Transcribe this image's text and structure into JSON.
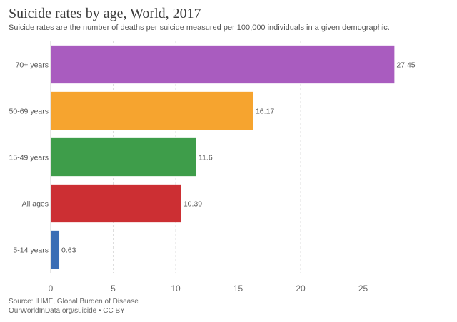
{
  "title": "Suicide rates by age, World, 2017",
  "subtitle": "Suicide rates are the number of deaths per suicide measured per 100,000 individuals in a given demographic.",
  "footer": {
    "source": "Source: IHME, Global Burden of Disease",
    "attribution": "OurWorldInData.org/suicide • CC BY"
  },
  "chart_data": {
    "type": "bar",
    "orientation": "horizontal",
    "categories": [
      "70+ years",
      "50-69 years",
      "15-49 years",
      "All ages",
      "5-14 years"
    ],
    "values": [
      27.45,
      16.17,
      11.6,
      10.39,
      0.63
    ],
    "value_labels": [
      "27.45",
      "16.17",
      "11.6",
      "10.39",
      "0.63"
    ],
    "colors": [
      "#a95cbf",
      "#f6a42f",
      "#3e9d4a",
      "#cc2f33",
      "#3a6db5"
    ],
    "xlim": [
      0,
      30
    ],
    "xticks": [
      0,
      5,
      10,
      15,
      20,
      25
    ],
    "grid": true
  }
}
